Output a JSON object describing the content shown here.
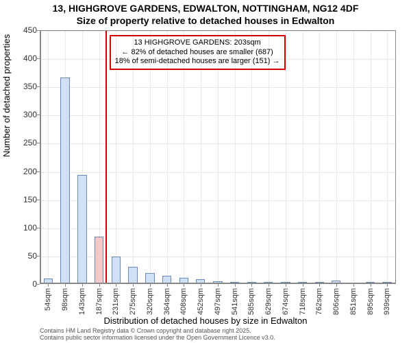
{
  "chart": {
    "type": "histogram",
    "title_main": "13, HIGHGROVE GARDENS, EDWALTON, NOTTINGHAM, NG12 4DF",
    "title_sub": "Size of property relative to detached houses in Edwalton",
    "title_fontsize": 14,
    "title_font_weight": "bold",
    "background_color": "#ffffff",
    "grid_color": "#e9e9e9",
    "axis_color": "#878787",
    "bar_fill_color": "#cfe0f7",
    "bar_border_color": "#6c88b8",
    "bar_width_ratio": 0.54,
    "highlight_fill_color": "#f6c9c9",
    "highlight_index": 3,
    "marker_color": "#d00000",
    "marker_value": 203,
    "callout_border_color": "#d00000",
    "callout_text_color": "#000000",
    "callout_lines": {
      "line1": "13 HIGHGROVE GARDENS: 203sqm",
      "line2": "← 82% of detached houses are smaller (687)",
      "line3": "18% of semi-detached houses are larger (151) →"
    },
    "callout_fontsize": 11,
    "ylabel": "Number of detached properties",
    "xlabel": "Distribution of detached houses by size in Edwalton",
    "label_fontsize": 13,
    "tick_fontsize": 12,
    "xlim": [
      32,
      962
    ],
    "ylim": [
      0,
      450
    ],
    "yticks": [
      0,
      50,
      100,
      150,
      200,
      250,
      300,
      350,
      400,
      450
    ],
    "x_categories": [
      "54sqm",
      "98sqm",
      "143sqm",
      "187sqm",
      "231sqm",
      "275sqm",
      "320sqm",
      "364sqm",
      "408sqm",
      "452sqm",
      "497sqm",
      "541sqm",
      "585sqm",
      "629sqm",
      "674sqm",
      "718sqm",
      "762sqm",
      "806sqm",
      "851sqm",
      "895sqm",
      "939sqm"
    ],
    "x_centers": [
      54,
      98,
      143,
      187,
      231,
      275,
      320,
      364,
      408,
      452,
      497,
      541,
      585,
      629,
      674,
      718,
      762,
      806,
      851,
      895,
      939
    ],
    "values": [
      9,
      365,
      192,
      83,
      47,
      29,
      18,
      13,
      10,
      7,
      4,
      1,
      1,
      2,
      1,
      1,
      1,
      5,
      0,
      1,
      1
    ],
    "credit_line1": "Contains HM Land Registry data © Crown copyright and database right 2025.",
    "credit_line2": "Contains public sector information licensed under the Open Government Licence v3.0.",
    "credit_color": "#555555",
    "credit_fontsize": 9
  }
}
